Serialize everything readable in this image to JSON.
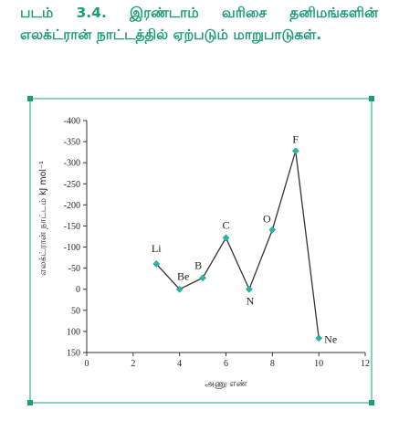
{
  "caption": {
    "figure_number": "படம் 3.4.",
    "text": "இரண்டாம் வரிசை தனிமங்களின் எலக்ட்ரான் நாட்டத்தில் ஏற்படும் மாறுபாடுகள்."
  },
  "colors": {
    "accent": "#1d9c7a",
    "line": "#333333",
    "marker": "#24b8a8"
  },
  "chart_data": {
    "type": "line",
    "xlabel": "அணு எண்",
    "ylabel": "எலக்ட்ரான் நாட்டம் kJ mol⁻¹",
    "xlim": [
      0,
      12
    ],
    "ylim": [
      150,
      -400
    ],
    "y_inverted": true,
    "x_ticks": [
      "0",
      "2",
      "4",
      "6",
      "8",
      "10",
      "12"
    ],
    "y_ticks": [
      "-400",
      "-350",
      "-300",
      "-250",
      "-200",
      "-150",
      "-100",
      "-50",
      "0",
      "50",
      "100",
      "150"
    ],
    "grid": false,
    "points": [
      {
        "label": "Li",
        "x": 3,
        "y": -60
      },
      {
        "label": "Be",
        "x": 4,
        "y": 0
      },
      {
        "label": "B",
        "x": 5,
        "y": -27
      },
      {
        "label": "C",
        "x": 6,
        "y": -122
      },
      {
        "label": "N",
        "x": 7,
        "y": 0
      },
      {
        "label": "O",
        "x": 8,
        "y": -141
      },
      {
        "label": "F",
        "x": 9,
        "y": -328
      },
      {
        "label": "Ne",
        "x": 10,
        "y": 116
      }
    ]
  }
}
